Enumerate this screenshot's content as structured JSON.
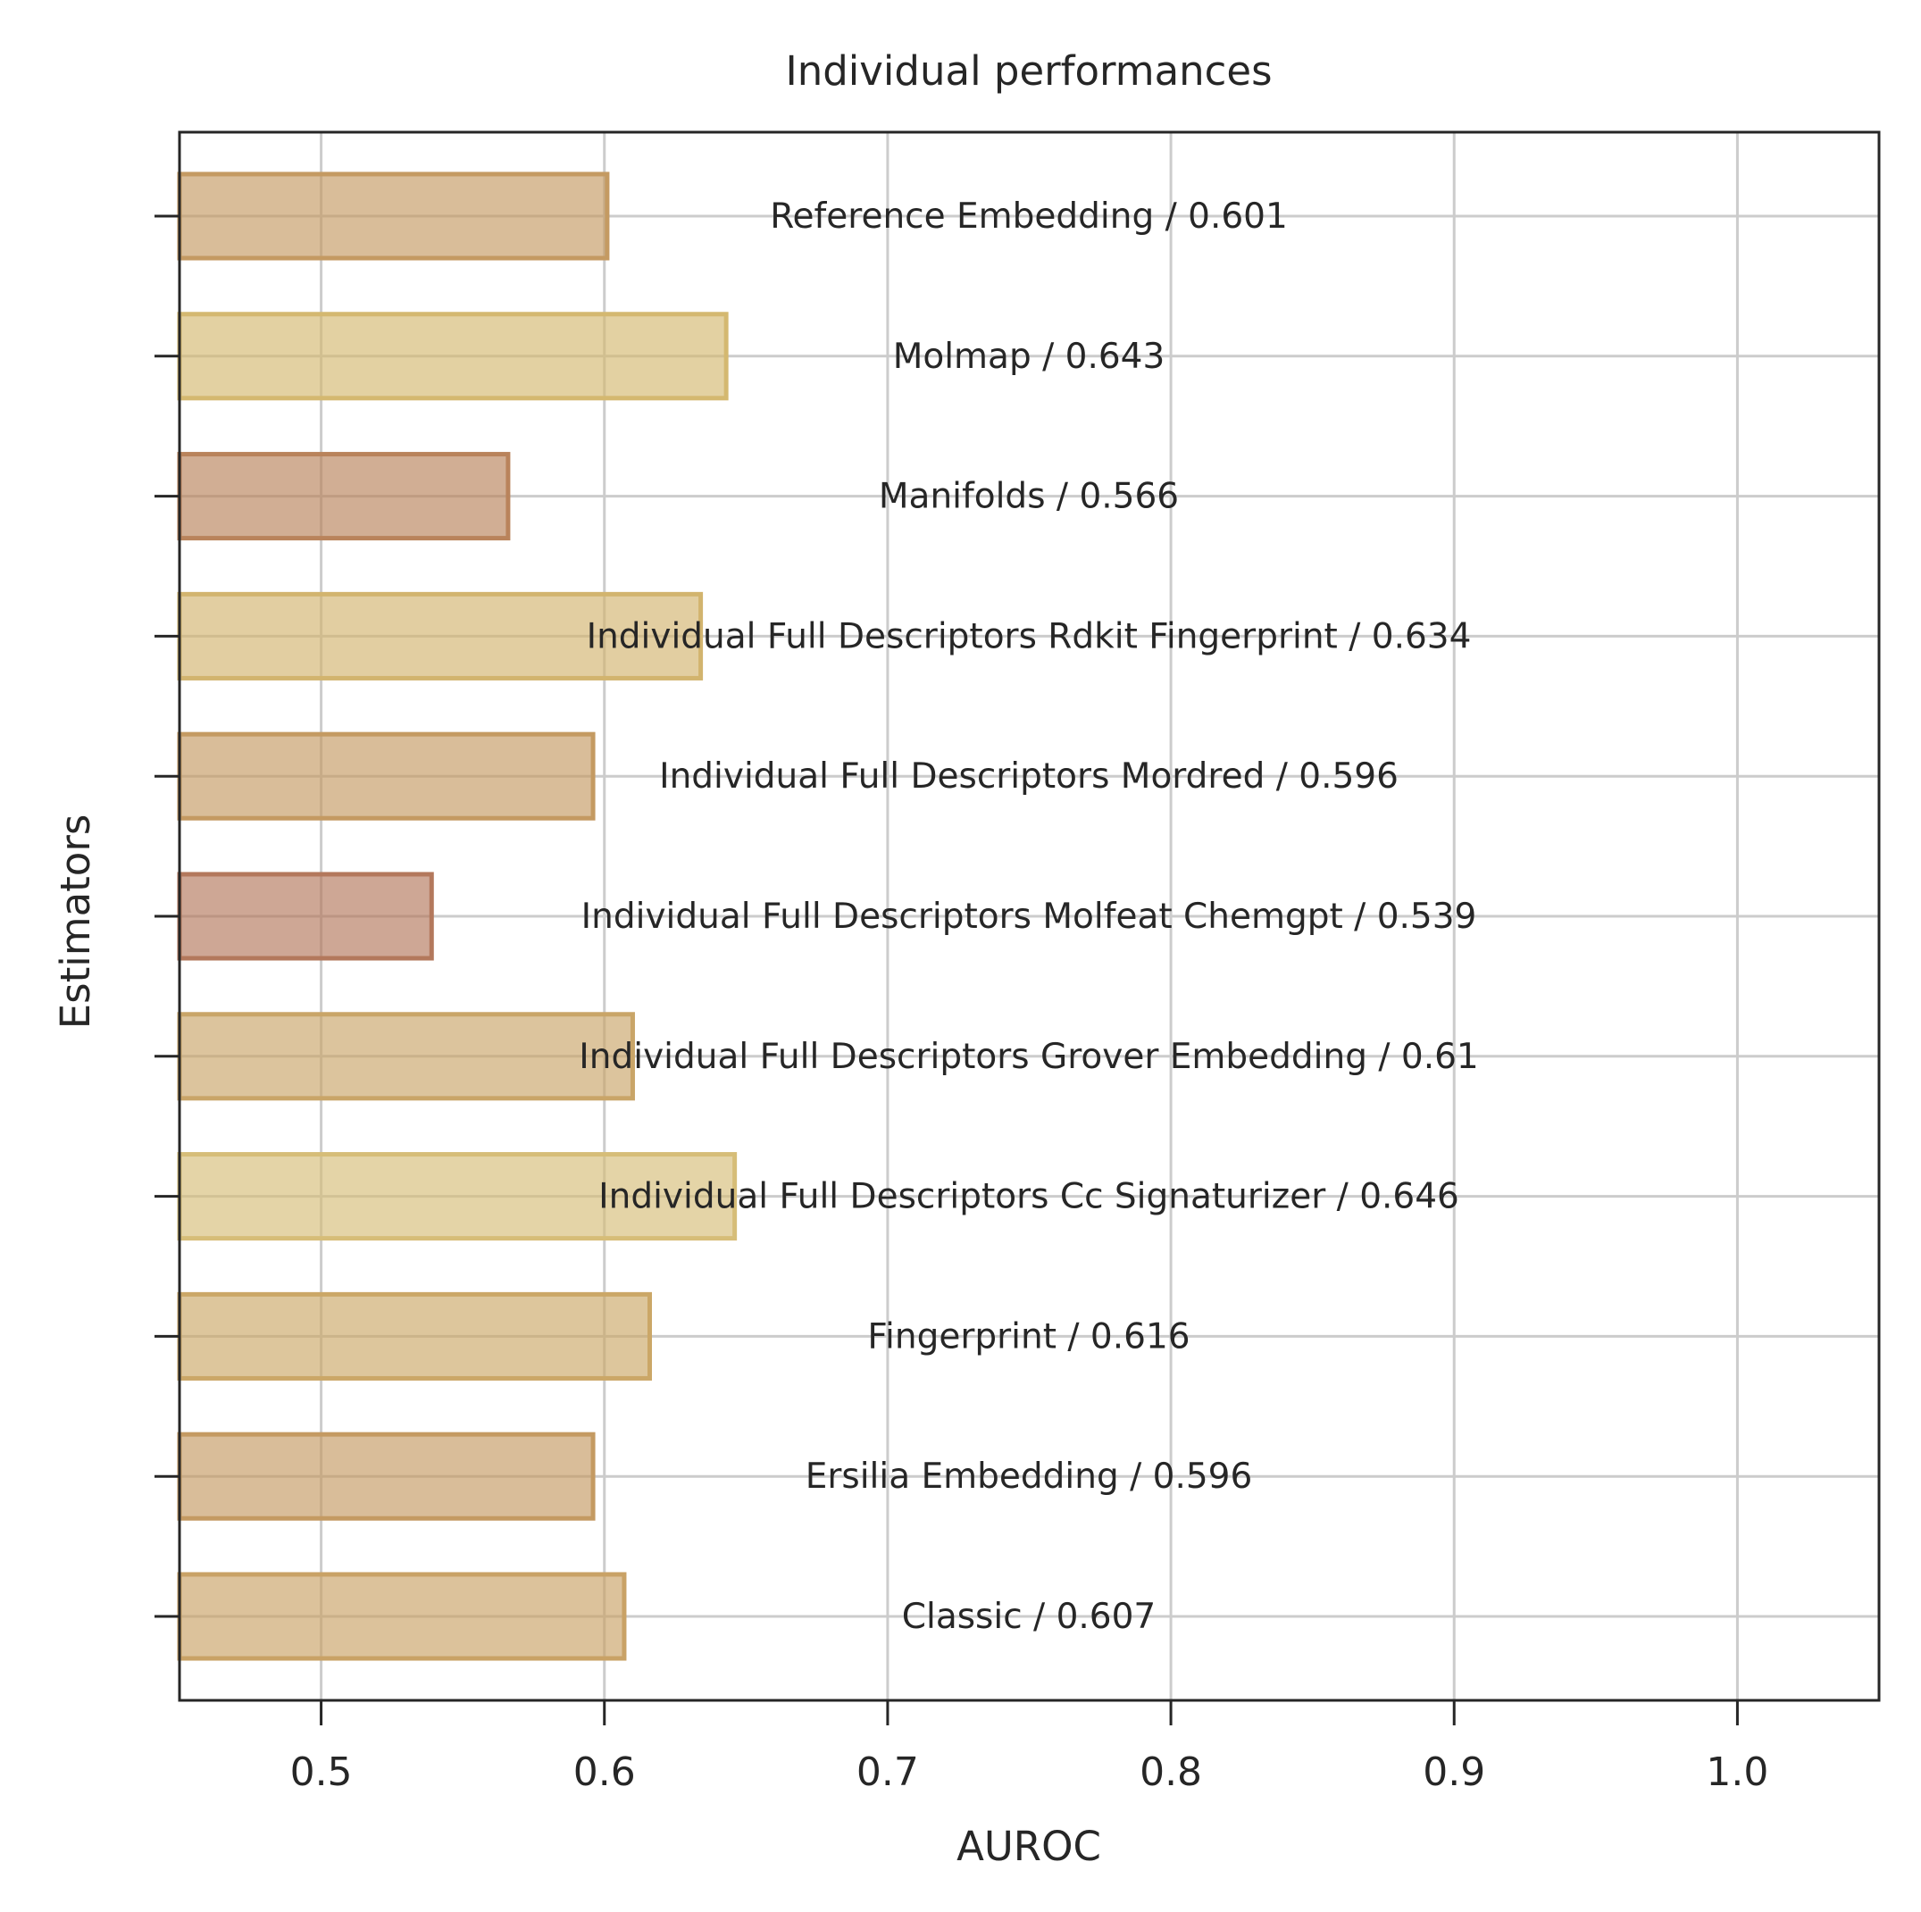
{
  "chart_data": {
    "type": "bar",
    "orientation": "horizontal",
    "title": "Individual performances",
    "xlabel": "AUROC",
    "ylabel": "Estimators",
    "xlim": [
      0.45,
      1.05
    ],
    "xticks": [
      "0.5",
      "0.6",
      "0.7",
      "0.8",
      "0.9",
      "1.0"
    ],
    "grid": true,
    "bars": [
      {
        "label": "Reference Embedding / 0.601",
        "value": 0.601,
        "color": "#c49a62"
      },
      {
        "label": "Molmap / 0.643",
        "value": 0.643,
        "color": "#d4b870"
      },
      {
        "label": "Manifolds / 0.566",
        "value": 0.566,
        "color": "#b9835b"
      },
      {
        "label": "Individual Full Descriptors Rdkit Fingerprint / 0.634",
        "value": 0.634,
        "color": "#d2b46e"
      },
      {
        "label": "Individual Full Descriptors Mordred / 0.596",
        "value": 0.596,
        "color": "#c49a62"
      },
      {
        "label": "Individual Full Descriptors Molfeat Chemgpt / 0.539",
        "value": 0.539,
        "color": "#b3785c"
      },
      {
        "label": "Individual Full Descriptors Grover Embedding / 0.61",
        "value": 0.61,
        "color": "#c9a568"
      },
      {
        "label": "Individual Full Descriptors Cc Signaturizer / 0.646",
        "value": 0.646,
        "color": "#d6bd78"
      },
      {
        "label": "Fingerprint / 0.616",
        "value": 0.616,
        "color": "#cba767"
      },
      {
        "label": "Ersilia Embedding / 0.596",
        "value": 0.596,
        "color": "#c49a62"
      },
      {
        "label": "Classic / 0.607",
        "value": 0.607,
        "color": "#c9a266"
      }
    ]
  }
}
